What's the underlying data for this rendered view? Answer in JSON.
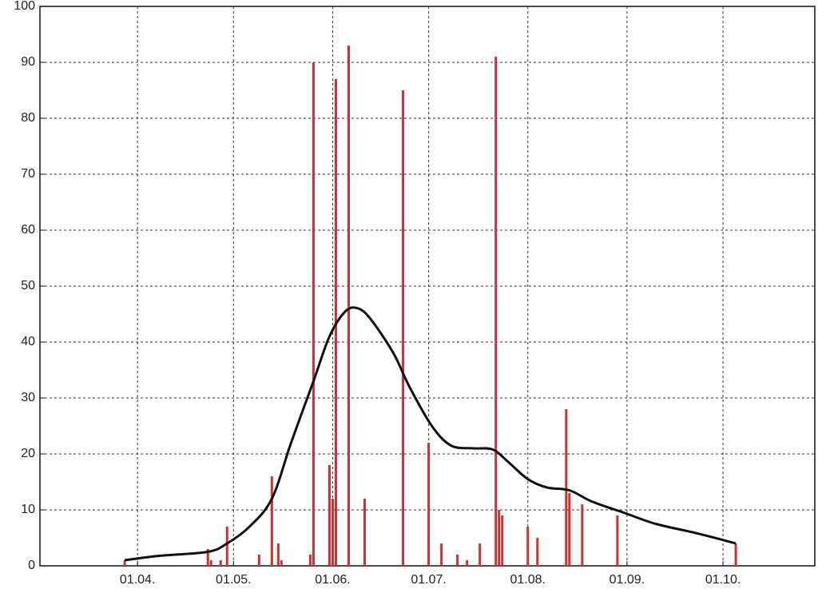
{
  "chart_data": {
    "type": "bar",
    "x": [
      -4,
      22,
      23,
      26,
      28,
      38,
      42,
      44,
      45,
      54,
      55,
      60,
      61,
      62,
      66,
      71,
      83,
      91,
      95,
      100,
      103,
      107,
      112,
      113,
      114,
      122,
      125,
      134,
      135,
      139,
      150,
      187
    ],
    "values": [
      1,
      3,
      1,
      1,
      7,
      2,
      16,
      4,
      1,
      2,
      90,
      18,
      12,
      87,
      93,
      12,
      85,
      22,
      4,
      2,
      1,
      4,
      91,
      10,
      9,
      7,
      5,
      28,
      13,
      11,
      9,
      4
    ],
    "color": "#d03030",
    "curve": {
      "type": "line",
      "color": "#111111",
      "x": [
        -4,
        7,
        22,
        28,
        35,
        42,
        48,
        55,
        60,
        65,
        69,
        73,
        80,
        85,
        92,
        98,
        105,
        111,
        116,
        122,
        128,
        135,
        142,
        152,
        162,
        175,
        187
      ],
      "values": [
        1,
        1.8,
        2.5,
        4,
        7,
        12,
        22,
        33,
        41,
        45.5,
        46,
        44,
        38,
        32,
        25,
        21.5,
        21,
        20.8,
        18.5,
        15.5,
        14,
        13.5,
        11.5,
        9.5,
        7.5,
        5.8,
        4
      ]
    },
    "xlim": [
      -30.5,
      211.7
    ],
    "xticks": [
      {
        "value": 0,
        "label": "01.04."
      },
      {
        "value": 30,
        "label": "01.05."
      },
      {
        "value": 61,
        "label": "01.06."
      },
      {
        "value": 91,
        "label": "01.07."
      },
      {
        "value": 122,
        "label": "01.08."
      },
      {
        "value": 153,
        "label": "01.09."
      },
      {
        "value": 183,
        "label": "01.10."
      }
    ],
    "ylim": [
      0,
      100
    ],
    "yticks": [
      0,
      10,
      20,
      30,
      40,
      50,
      60,
      70,
      80,
      90,
      100
    ],
    "grid": true
  }
}
